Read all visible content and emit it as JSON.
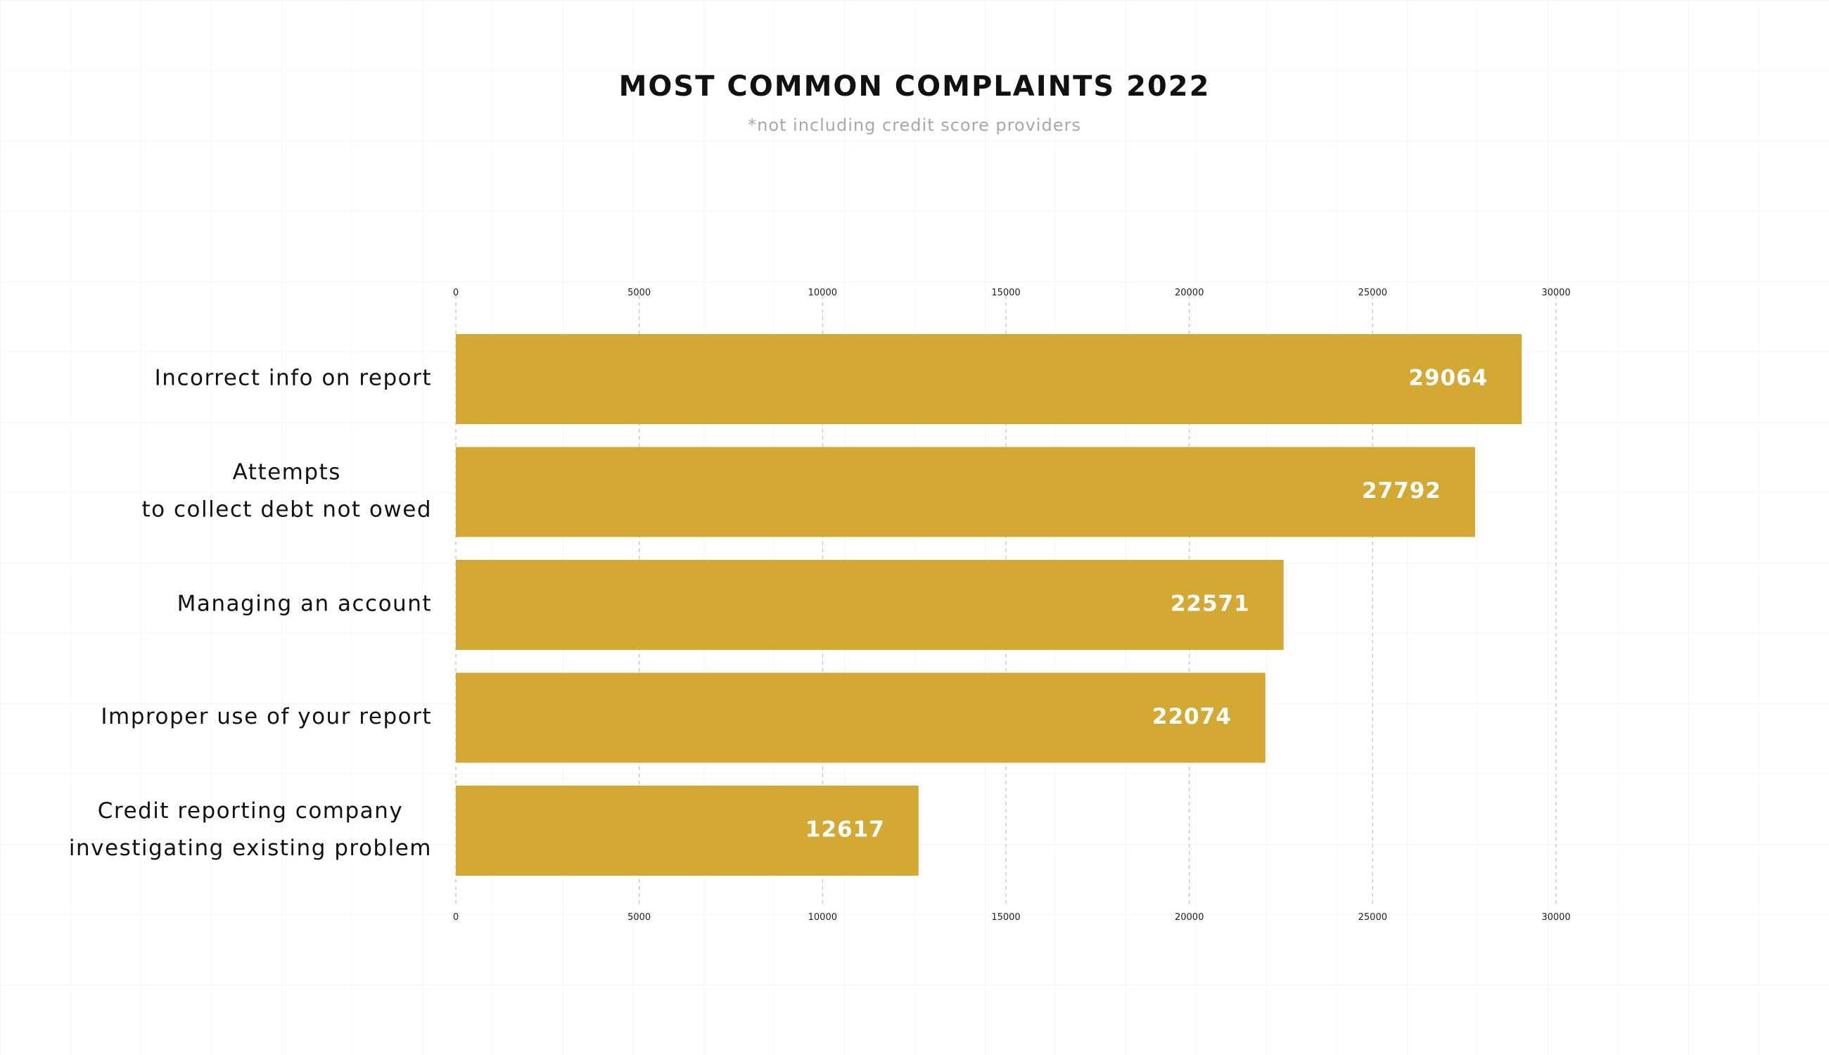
{
  "chart_data": {
    "type": "bar",
    "orientation": "horizontal",
    "title": "MOST COMMON COMPLAINTS 2022",
    "subtitle": "*not including credit score providers",
    "categories": [
      "Incorrect info on report",
      "Attempts\nto collect debt not owed",
      "Managing an account",
      "Improper use of your report",
      "Credit reporting company\ninvestigating existing problem"
    ],
    "values": [
      29064,
      27792,
      22571,
      22074,
      12617
    ],
    "xlim": [
      0,
      30000
    ],
    "ticks": [
      0,
      5000,
      10000,
      15000,
      20000,
      25000,
      30000
    ],
    "tick_labels": [
      "0",
      "5000",
      "10000",
      "15000",
      "20000",
      "25000",
      "30000"
    ],
    "axis_position": "top and bottom",
    "grid": true,
    "data_labels": true,
    "colors": {
      "bar": "#d4a933",
      "grid": "#c8c8c8",
      "label_text": "#ffffff"
    }
  }
}
